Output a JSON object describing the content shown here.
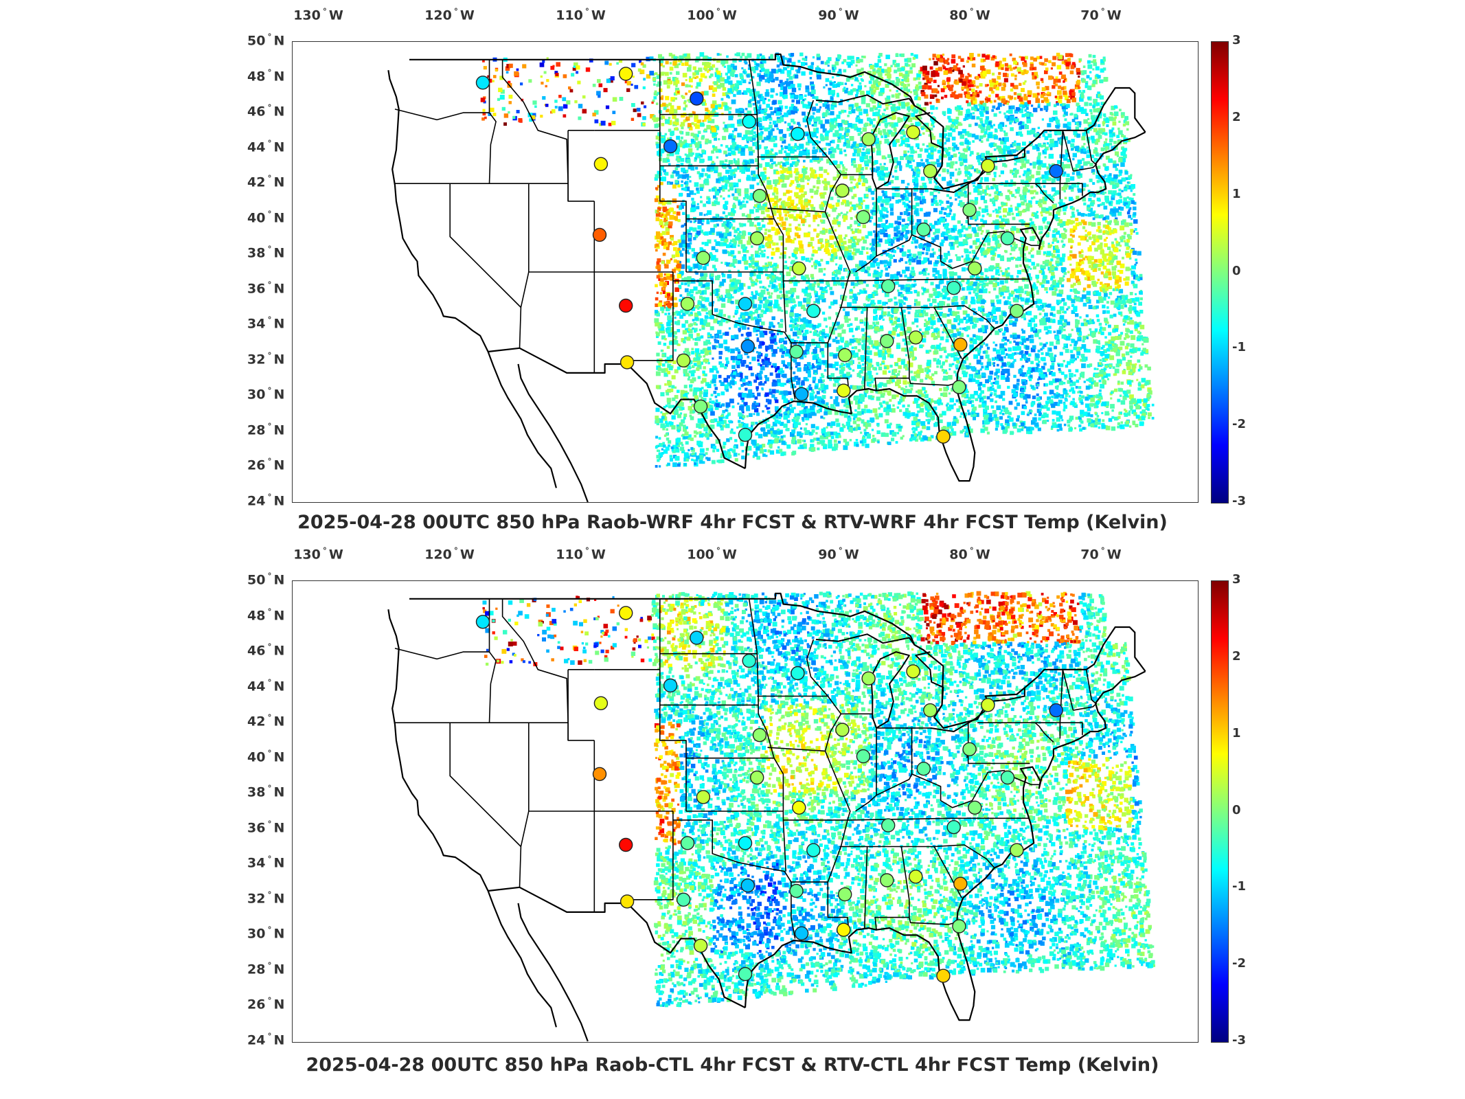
{
  "maps": [
    {
      "id": "top",
      "title": "2025-04-28 00UTC 850 hPa Raob-WRF 4hr FCST & RTV-WRF 4hr FCST Temp (Kelvin)",
      "lon_labels": [
        {
          "deg": "130",
          "hem": "W"
        },
        {
          "deg": "120",
          "hem": "W"
        },
        {
          "deg": "110",
          "hem": "W"
        },
        {
          "deg": "100",
          "hem": "W"
        },
        {
          "deg": "90",
          "hem": "W"
        },
        {
          "deg": "80",
          "hem": "W"
        },
        {
          "deg": "70",
          "hem": "W"
        }
      ],
      "lat_labels": [
        {
          "deg": "50",
          "hem": "N"
        },
        {
          "deg": "48",
          "hem": "N"
        },
        {
          "deg": "46",
          "hem": "N"
        },
        {
          "deg": "44",
          "hem": "N"
        },
        {
          "deg": "42",
          "hem": "N"
        },
        {
          "deg": "40",
          "hem": "N"
        },
        {
          "deg": "38",
          "hem": "N"
        },
        {
          "deg": "36",
          "hem": "N"
        },
        {
          "deg": "34",
          "hem": "N"
        },
        {
          "deg": "32",
          "hem": "N"
        },
        {
          "deg": "30",
          "hem": "N"
        },
        {
          "deg": "28",
          "hem": "N"
        },
        {
          "deg": "26",
          "hem": "N"
        },
        {
          "deg": "24",
          "hem": "N"
        }
      ],
      "colorbar_ticks": [
        "3",
        "2",
        "1",
        "0",
        "-1",
        "-2",
        "-3"
      ],
      "raob_stations": [
        {
          "lon": -117.5,
          "lat": 47.7,
          "v": -0.9
        },
        {
          "lon": -106.6,
          "lat": 48.2,
          "v": 0.8
        },
        {
          "lon": -101.2,
          "lat": 46.8,
          "v": -1.8
        },
        {
          "lon": -97.2,
          "lat": 45.5,
          "v": -0.7
        },
        {
          "lon": -103.2,
          "lat": 44.1,
          "v": -1.6
        },
        {
          "lon": -93.5,
          "lat": 44.8,
          "v": -0.8
        },
        {
          "lon": -108.5,
          "lat": 43.1,
          "v": 0.8
        },
        {
          "lon": -108.6,
          "lat": 39.1,
          "v": 1.7
        },
        {
          "lon": -106.6,
          "lat": 35.1,
          "v": 2.2
        },
        {
          "lon": -106.5,
          "lat": 31.9,
          "v": 0.9
        },
        {
          "lon": -102.2,
          "lat": 32.0,
          "v": 0.3
        },
        {
          "lon": -101.9,
          "lat": 35.2,
          "v": 0.2
        },
        {
          "lon": -97.5,
          "lat": 35.2,
          "v": -1.0
        },
        {
          "lon": -97.3,
          "lat": 32.8,
          "v": -1.4
        },
        {
          "lon": -100.9,
          "lat": 29.4,
          "v": 0.0
        },
        {
          "lon": -97.5,
          "lat": 27.8,
          "v": -0.5
        },
        {
          "lon": -93.2,
          "lat": 30.1,
          "v": -1.2
        },
        {
          "lon": -90.0,
          "lat": 30.3,
          "v": 0.6
        },
        {
          "lon": -93.6,
          "lat": 32.5,
          "v": -0.2
        },
        {
          "lon": -92.3,
          "lat": 34.8,
          "v": -0.6
        },
        {
          "lon": -89.9,
          "lat": 32.3,
          "v": 0.2
        },
        {
          "lon": -86.7,
          "lat": 33.1,
          "v": 0.0
        },
        {
          "lon": -84.5,
          "lat": 33.3,
          "v": 0.3
        },
        {
          "lon": -81.1,
          "lat": 32.9,
          "v": 1.2
        },
        {
          "lon": -82.4,
          "lat": 27.7,
          "v": 1.0
        },
        {
          "lon": -96.6,
          "lat": 38.9,
          "v": 0.2
        },
        {
          "lon": -100.7,
          "lat": 37.8,
          "v": 0.1
        },
        {
          "lon": -93.4,
          "lat": 37.2,
          "v": 0.4
        },
        {
          "lon": -96.4,
          "lat": 41.3,
          "v": 0.0
        },
        {
          "lon": -90.1,
          "lat": 41.6,
          "v": 0.3
        },
        {
          "lon": -88.5,
          "lat": 40.1,
          "v": 0.0
        },
        {
          "lon": -86.6,
          "lat": 36.2,
          "v": -0.2
        },
        {
          "lon": -83.9,
          "lat": 39.4,
          "v": -0.2
        },
        {
          "lon": -81.6,
          "lat": 36.1,
          "v": -0.4
        },
        {
          "lon": -80.4,
          "lat": 40.5,
          "v": 0.0
        },
        {
          "lon": -83.4,
          "lat": 42.7,
          "v": 0.3
        },
        {
          "lon": -84.7,
          "lat": 44.9,
          "v": 0.5
        },
        {
          "lon": -88.1,
          "lat": 44.5,
          "v": 0.2
        },
        {
          "lon": -79.0,
          "lat": 43.0,
          "v": 0.5
        },
        {
          "lon": -73.8,
          "lat": 42.7,
          "v": -1.6
        },
        {
          "lon": -77.5,
          "lat": 38.9,
          "v": -0.3
        },
        {
          "lon": -80.0,
          "lat": 37.2,
          "v": 0.2
        },
        {
          "lon": -76.8,
          "lat": 34.8,
          "v": 0.0
        },
        {
          "lon": -81.2,
          "lat": 30.5,
          "v": 0.0
        }
      ]
    },
    {
      "id": "bottom",
      "title": "2025-04-28 00UTC 850 hPa Raob-CTL 4hr FCST & RTV-CTL 4hr FCST Temp (Kelvin)",
      "lon_labels": [
        {
          "deg": "130",
          "hem": "W"
        },
        {
          "deg": "120",
          "hem": "W"
        },
        {
          "deg": "110",
          "hem": "W"
        },
        {
          "deg": "100",
          "hem": "W"
        },
        {
          "deg": "90",
          "hem": "W"
        },
        {
          "deg": "80",
          "hem": "W"
        },
        {
          "deg": "70",
          "hem": "W"
        }
      ],
      "lat_labels": [
        {
          "deg": "50",
          "hem": "N"
        },
        {
          "deg": "48",
          "hem": "N"
        },
        {
          "deg": "46",
          "hem": "N"
        },
        {
          "deg": "44",
          "hem": "N"
        },
        {
          "deg": "42",
          "hem": "N"
        },
        {
          "deg": "40",
          "hem": "N"
        },
        {
          "deg": "38",
          "hem": "N"
        },
        {
          "deg": "36",
          "hem": "N"
        },
        {
          "deg": "34",
          "hem": "N"
        },
        {
          "deg": "32",
          "hem": "N"
        },
        {
          "deg": "30",
          "hem": "N"
        },
        {
          "deg": "28",
          "hem": "N"
        },
        {
          "deg": "26",
          "hem": "N"
        },
        {
          "deg": "24",
          "hem": "N"
        }
      ],
      "colorbar_ticks": [
        "3",
        "2",
        "1",
        "0",
        "-1",
        "-2",
        "-3"
      ],
      "raob_stations": [
        {
          "lon": -117.5,
          "lat": 47.7,
          "v": -0.9
        },
        {
          "lon": -106.6,
          "lat": 48.2,
          "v": 0.8
        },
        {
          "lon": -101.2,
          "lat": 46.8,
          "v": -1.0
        },
        {
          "lon": -97.2,
          "lat": 45.5,
          "v": -0.5
        },
        {
          "lon": -103.2,
          "lat": 44.1,
          "v": -1.0
        },
        {
          "lon": -93.5,
          "lat": 44.8,
          "v": -0.6
        },
        {
          "lon": -108.5,
          "lat": 43.1,
          "v": 0.6
        },
        {
          "lon": -108.6,
          "lat": 39.1,
          "v": 1.4
        },
        {
          "lon": -106.6,
          "lat": 35.1,
          "v": 2.2
        },
        {
          "lon": -106.5,
          "lat": 31.9,
          "v": 0.9
        },
        {
          "lon": -102.2,
          "lat": 32.0,
          "v": -0.3
        },
        {
          "lon": -101.9,
          "lat": 35.2,
          "v": -0.2
        },
        {
          "lon": -97.5,
          "lat": 35.2,
          "v": -0.8
        },
        {
          "lon": -97.3,
          "lat": 32.8,
          "v": -1.1
        },
        {
          "lon": -100.9,
          "lat": 29.4,
          "v": 0.4
        },
        {
          "lon": -97.5,
          "lat": 27.8,
          "v": -0.3
        },
        {
          "lon": -93.2,
          "lat": 30.1,
          "v": -1.1
        },
        {
          "lon": -90.0,
          "lat": 30.3,
          "v": 0.8
        },
        {
          "lon": -93.6,
          "lat": 32.5,
          "v": -0.2
        },
        {
          "lon": -92.3,
          "lat": 34.8,
          "v": -0.6
        },
        {
          "lon": -89.9,
          "lat": 32.3,
          "v": 0.1
        },
        {
          "lon": -86.7,
          "lat": 33.1,
          "v": 0.1
        },
        {
          "lon": -84.5,
          "lat": 33.3,
          "v": 0.5
        },
        {
          "lon": -81.1,
          "lat": 32.9,
          "v": 1.2
        },
        {
          "lon": -82.4,
          "lat": 27.7,
          "v": 1.0
        },
        {
          "lon": -96.6,
          "lat": 38.9,
          "v": 0.2
        },
        {
          "lon": -100.7,
          "lat": 37.8,
          "v": 0.4
        },
        {
          "lon": -93.4,
          "lat": 37.2,
          "v": 0.7
        },
        {
          "lon": -96.4,
          "lat": 41.3,
          "v": 0.1
        },
        {
          "lon": -90.1,
          "lat": 41.6,
          "v": 0.3
        },
        {
          "lon": -88.5,
          "lat": 40.1,
          "v": -0.2
        },
        {
          "lon": -86.6,
          "lat": 36.2,
          "v": -0.2
        },
        {
          "lon": -83.9,
          "lat": 39.4,
          "v": -0.2
        },
        {
          "lon": -81.6,
          "lat": 36.1,
          "v": -0.4
        },
        {
          "lon": -80.4,
          "lat": 40.5,
          "v": 0.0
        },
        {
          "lon": -83.4,
          "lat": 42.7,
          "v": 0.2
        },
        {
          "lon": -84.7,
          "lat": 44.9,
          "v": 0.5
        },
        {
          "lon": -88.1,
          "lat": 44.5,
          "v": 0.2
        },
        {
          "lon": -79.0,
          "lat": 43.0,
          "v": 0.5
        },
        {
          "lon": -73.8,
          "lat": 42.7,
          "v": -1.6
        },
        {
          "lon": -77.5,
          "lat": 38.9,
          "v": -0.3
        },
        {
          "lon": -80.0,
          "lat": 37.2,
          "v": 0.0
        },
        {
          "lon": -76.8,
          "lat": 34.8,
          "v": 0.2
        },
        {
          "lon": -81.2,
          "lat": 30.5,
          "v": 0.0
        }
      ]
    }
  ],
  "map_settings": {
    "lon_range": [
      -132,
      -63
    ],
    "lat_range": [
      24,
      50
    ],
    "colorbar_range": [
      -3,
      3
    ],
    "colormap": "jet",
    "border_color": "#000000"
  }
}
